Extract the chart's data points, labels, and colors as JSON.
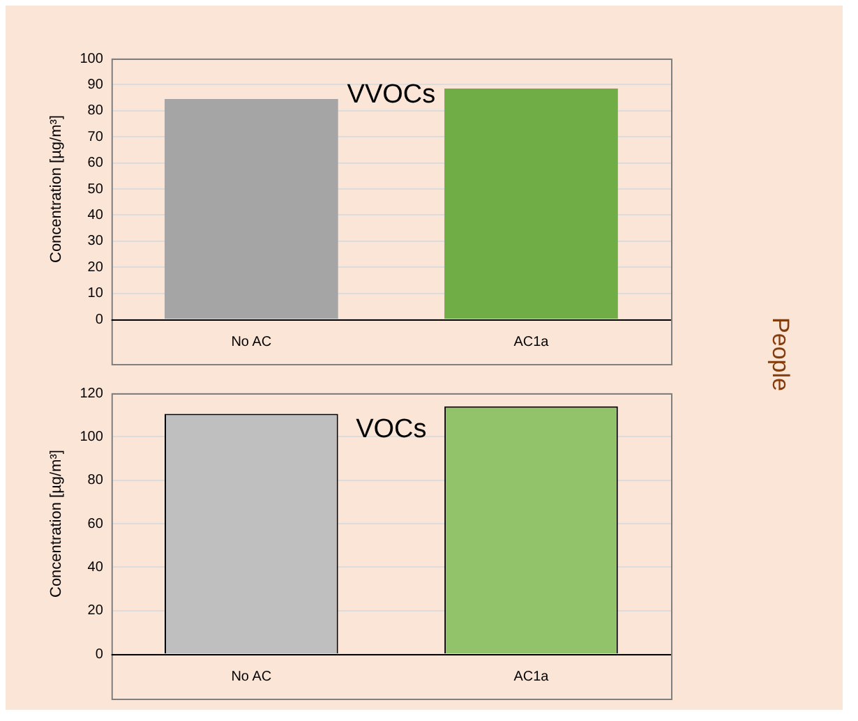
{
  "chart_data": [
    {
      "type": "bar",
      "title": "VVOCs",
      "ylabel": "Concentration [µg/m³]",
      "categories": [
        "No AC",
        "AC1a"
      ],
      "values": [
        84.5,
        88.5
      ],
      "colors": [
        "#a5a5a5",
        "#70ad47"
      ],
      "ylim": [
        0,
        100
      ],
      "yticks": [
        0,
        10,
        20,
        30,
        40,
        50,
        60,
        70,
        80,
        90,
        100
      ],
      "grid": "y",
      "annotations": [
        "People"
      ]
    },
    {
      "type": "bar",
      "title": "VOCs",
      "ylabel": "Concentration [µg/m³]",
      "categories": [
        "No AC",
        "AC1a"
      ],
      "values": [
        110.5,
        114
      ],
      "colors": [
        "#bfbfbf",
        "#92c26a"
      ],
      "ylim": [
        0,
        120
      ],
      "yticks": [
        0,
        20,
        40,
        60,
        80,
        100,
        120
      ],
      "grid": "y"
    }
  ]
}
